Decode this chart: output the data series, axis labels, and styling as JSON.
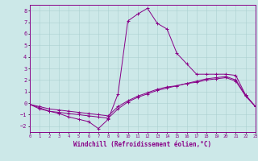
{
  "xlabel": "Windchill (Refroidissement éolien,°C)",
  "xlim": [
    0,
    23
  ],
  "ylim": [
    -2.5,
    8.5
  ],
  "yticks": [
    -2,
    -1,
    0,
    1,
    2,
    3,
    4,
    5,
    6,
    7,
    8
  ],
  "xticks": [
    0,
    1,
    2,
    3,
    4,
    5,
    6,
    7,
    8,
    9,
    10,
    11,
    12,
    13,
    14,
    15,
    16,
    17,
    18,
    19,
    20,
    21,
    22,
    23
  ],
  "background_color": "#cce8e8",
  "grid_color": "#aacfcf",
  "line_color": "#880088",
  "curve1_x": [
    0,
    1,
    2,
    3,
    4,
    5,
    6,
    7,
    8,
    9,
    10,
    11,
    12,
    13,
    14,
    15,
    16,
    17,
    18,
    19,
    20,
    21,
    22,
    23
  ],
  "curve1_y": [
    -0.1,
    -0.5,
    -0.7,
    -0.9,
    -1.2,
    -1.4,
    -1.6,
    -2.2,
    -1.4,
    0.8,
    7.1,
    7.7,
    8.2,
    6.9,
    6.4,
    4.3,
    3.4,
    2.5,
    2.5,
    2.5,
    2.5,
    2.4,
    0.7,
    -0.3
  ],
  "curve2_x": [
    0,
    1,
    2,
    3,
    4,
    5,
    6,
    7,
    8,
    9,
    10,
    11,
    12,
    13,
    14,
    15,
    16,
    17,
    18,
    19,
    20,
    21,
    22,
    23
  ],
  "curve2_y": [
    -0.1,
    -0.4,
    -0.7,
    -0.8,
    -0.9,
    -1.0,
    -1.1,
    -1.2,
    -1.3,
    -0.5,
    0.1,
    0.5,
    0.8,
    1.1,
    1.3,
    1.5,
    1.7,
    1.9,
    2.1,
    2.2,
    2.3,
    2.0,
    0.7,
    -0.3
  ],
  "curve3_x": [
    0,
    1,
    2,
    3,
    4,
    5,
    6,
    7,
    8,
    9,
    10,
    11,
    12,
    13,
    14,
    15,
    16,
    17,
    18,
    19,
    20,
    21,
    22,
    23
  ],
  "curve3_y": [
    -0.1,
    -0.3,
    -0.5,
    -0.6,
    -0.7,
    -0.8,
    -0.9,
    -1.0,
    -1.1,
    -0.3,
    0.2,
    0.6,
    0.9,
    1.2,
    1.4,
    1.5,
    1.7,
    1.8,
    2.0,
    2.1,
    2.2,
    1.9,
    0.6,
    -0.3
  ]
}
